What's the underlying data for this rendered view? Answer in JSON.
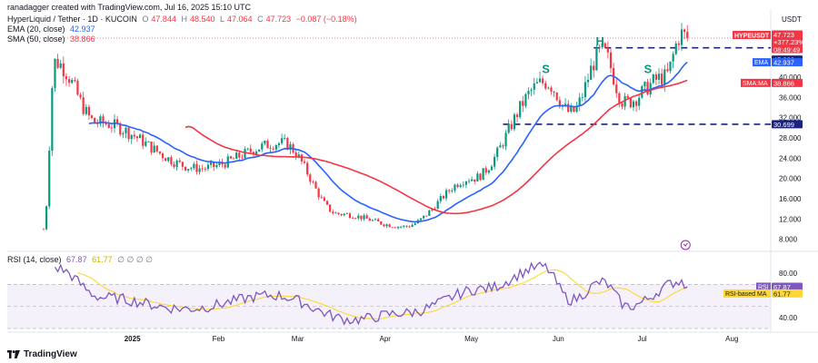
{
  "header": {
    "credit": "ranadagger created with TradingView.com, Jul 16, 2025 15:10 UTC",
    "symbol_line": "HyperLiquid / Tether · 1D · KUCOIN",
    "ohlc": {
      "o_label": "O",
      "o": "47.844",
      "h_label": "H",
      "h": "48.540",
      "l_label": "L",
      "l": "47.064",
      "c_label": "C",
      "c": "47.723",
      "chg": "−0.087 (−0.18%)"
    },
    "ema_line": {
      "label": "EMA (20, close)",
      "value": "42.937"
    },
    "sma_line": {
      "label": "SMA (50, close)",
      "value": "38.866"
    },
    "rsi_line": {
      "label": "RSI (14, close)",
      "value": "67.87",
      "ma_value": "61.77",
      "extra": "∅ ∅ ∅ ∅"
    }
  },
  "branding": {
    "logo_text": "TradingView"
  },
  "price_axis": {
    "currency": "USDT"
  },
  "badges": {
    "symbol": {
      "name": "HYPEUSDT",
      "value": "47.723",
      "change": "+377.23%",
      "countdown": "08:49:49",
      "color": "#f23645"
    },
    "level_top": {
      "value": "45.800"
    },
    "ema": {
      "name": "EMA",
      "value": "42.937",
      "color": "#2962ff"
    },
    "sma": {
      "name": "SMA:MA",
      "value": "38.866",
      "color": "#f23645"
    },
    "level_bottom": {
      "value": "30.699"
    },
    "rsi": {
      "name": "RSI",
      "value": "67.87",
      "color": "#7e57c2"
    },
    "rsi_ma": {
      "name": "RSI-based MA",
      "value": "61.77",
      "color": "#fdd835"
    }
  },
  "pattern_labels": {
    "left_shoulder": "S",
    "head": "H",
    "right_shoulder": "S"
  },
  "colors": {
    "up": "#089981",
    "down": "#f23645",
    "ema": "#2962ff",
    "sma": "#f23645",
    "rsi": "#7e57c2",
    "rsi_ma": "#fdd835",
    "level": "#1a237e",
    "pattern": "#089981"
  },
  "chart_data": [
    {
      "type": "candlestick",
      "title": "HyperLiquid / Tether · 1D · KUCOIN",
      "x_ticks": [
        "2025",
        "Feb",
        "Mar",
        "Apr",
        "May",
        "Jun",
        "Jul",
        "Aug"
      ],
      "y_ticks": [
        8,
        12,
        16,
        20,
        24,
        28,
        32,
        36,
        40
      ],
      "y_tick_labels": [
        "8.000",
        "12.000",
        "16.000",
        "20.000",
        "24.000",
        "28.000",
        "32.000",
        "36.000",
        "40.000"
      ],
      "ylim": [
        6.5,
        49.5
      ],
      "scale": "linear",
      "grid": false,
      "horizontal_levels": [
        45.8,
        30.699
      ],
      "annotations": [
        "S",
        "H",
        "S"
      ],
      "key_points": [
        {
          "date": "2024-12-01",
          "close": 10.0
        },
        {
          "date": "2024-12-05",
          "close": 43.0
        },
        {
          "date": "2024-12-20",
          "close": 31.0
        },
        {
          "date": "2025-01-25",
          "close": 22.0
        },
        {
          "date": "2025-02-23",
          "close": 27.0
        },
        {
          "date": "2025-03-15",
          "close": 13.0
        },
        {
          "date": "2025-04-07",
          "close": 10.5
        },
        {
          "date": "2025-05-01",
          "close": 20.0
        },
        {
          "date": "2025-05-27",
          "close": 39.0
        },
        {
          "date": "2025-06-05",
          "close": 33.0
        },
        {
          "date": "2025-06-16",
          "close": 45.0
        },
        {
          "date": "2025-06-24",
          "close": 35.0
        },
        {
          "date": "2025-07-08",
          "close": 40.0
        },
        {
          "date": "2025-07-14",
          "close": 48.5
        },
        {
          "date": "2025-07-16",
          "close": 47.723
        }
      ],
      "series": [
        {
          "name": "EMA (20, close)",
          "last": 42.937
        },
        {
          "name": "SMA (50, close)",
          "last": 38.866
        }
      ]
    },
    {
      "type": "line",
      "title": "RSI (14, close)",
      "y_ticks": [
        40,
        80
      ],
      "y_tick_labels": [
        "40.00",
        "80.00"
      ],
      "ylim": [
        30,
        95
      ],
      "bands": [
        30,
        70
      ],
      "key_points": [
        {
          "date": "2024-12-05",
          "rsi": 85
        },
        {
          "date": "2024-12-22",
          "rsi": 58
        },
        {
          "date": "2025-01-20",
          "rsi": 48
        },
        {
          "date": "2025-02-20",
          "rsi": 60
        },
        {
          "date": "2025-03-20",
          "rsi": 38
        },
        {
          "date": "2025-04-07",
          "rsi": 44
        },
        {
          "date": "2025-05-05",
          "rsi": 66
        },
        {
          "date": "2025-05-26",
          "rsi": 86
        },
        {
          "date": "2025-06-05",
          "rsi": 56
        },
        {
          "date": "2025-06-16",
          "rsi": 72
        },
        {
          "date": "2025-06-25",
          "rsi": 50
        },
        {
          "date": "2025-07-14",
          "rsi": 73
        },
        {
          "date": "2025-07-16",
          "rsi": 67.87
        }
      ],
      "series": [
        {
          "name": "RSI",
          "last": 67.87
        },
        {
          "name": "RSI-based MA",
          "last": 61.77
        }
      ]
    }
  ]
}
